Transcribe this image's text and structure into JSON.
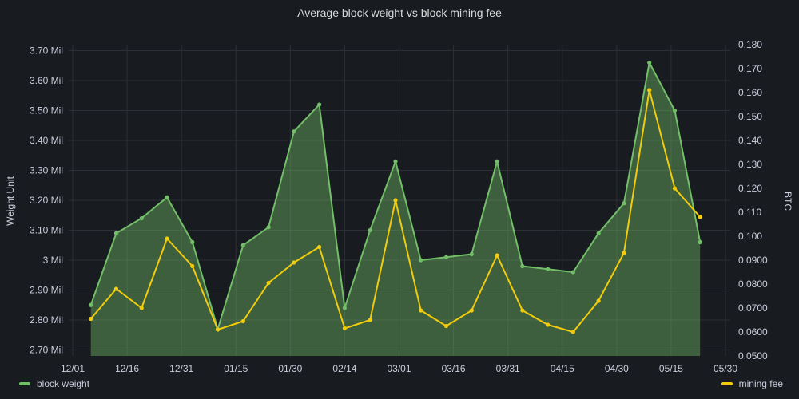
{
  "chart_data": {
    "type": "line",
    "title": "Average block weight vs block mining fee",
    "ylabel_left": "Weight  Unit",
    "ylabel_right": "BTC",
    "x_ticks": [
      "12/01",
      "12/16",
      "12/31",
      "01/15",
      "01/30",
      "02/14",
      "03/01",
      "03/16",
      "03/31",
      "04/15",
      "04/30",
      "05/15",
      "05/30"
    ],
    "y_left_ticks": [
      "2.70 Mil",
      "2.80 Mil",
      "2.90 Mil",
      "3 Mil",
      "3.10 Mil",
      "3.20 Mil",
      "3.30 Mil",
      "3.40 Mil",
      "3.50 Mil",
      "3.60 Mil",
      "3.70 Mil"
    ],
    "y_right_ticks": [
      "0.0500",
      "0.0600",
      "0.0700",
      "0.0800",
      "0.0900",
      "0.100",
      "0.110",
      "0.120",
      "0.130",
      "0.140",
      "0.150",
      "0.160",
      "0.170",
      "0.180"
    ],
    "y_left_range": [
      2.68,
      3.72
    ],
    "y_right_range": [
      0.05,
      0.18
    ],
    "y_left_unit": "Mil",
    "x": [
      "12/06",
      "12/13",
      "12/20",
      "12/27",
      "01/03",
      "01/10",
      "01/17",
      "01/24",
      "01/31",
      "02/07",
      "02/14",
      "02/21",
      "02/28",
      "03/07",
      "03/14",
      "03/21",
      "03/28",
      "04/04",
      "04/11",
      "04/18",
      "04/25",
      "05/02",
      "05/09",
      "05/16",
      "05/23"
    ],
    "series": [
      {
        "name": "block weight",
        "axis": "left",
        "color": "#73bf69",
        "fill": true,
        "values": [
          2.85,
          3.09,
          3.14,
          3.21,
          3.06,
          2.77,
          3.05,
          3.11,
          3.43,
          3.52,
          2.84,
          3.1,
          3.33,
          3.0,
          3.01,
          3.02,
          3.33,
          2.98,
          2.97,
          2.96,
          3.09,
          3.19,
          3.66,
          3.5,
          3.06
        ]
      },
      {
        "name": "mining fee",
        "axis": "right",
        "color": "#f2cc0c",
        "fill": false,
        "values": [
          0.0655,
          0.078,
          0.07,
          0.099,
          0.0875,
          0.061,
          0.0645,
          0.0805,
          0.089,
          0.0955,
          0.0615,
          0.065,
          0.115,
          0.069,
          0.0625,
          0.069,
          0.092,
          0.069,
          0.063,
          0.06,
          0.073,
          0.093,
          0.161,
          0.12,
          0.108
        ]
      }
    ],
    "grid": true,
    "legend": [
      {
        "name": "block weight",
        "color": "#73bf69",
        "placement": "bottom-left"
      },
      {
        "name": "mining fee",
        "color": "#f2cc0c",
        "placement": "bottom-right"
      }
    ]
  }
}
